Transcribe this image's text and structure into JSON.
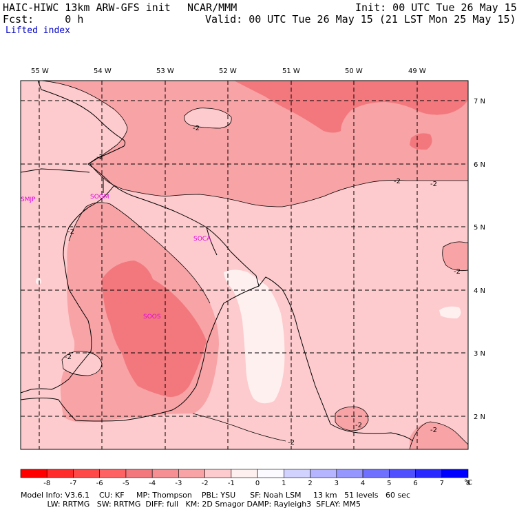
{
  "header": {
    "model_title": "HAIC-HIWC 13km ARW-GFS init",
    "org": "NCAR/MMM",
    "init": "Init: 00 UTC Tue 26 May 15",
    "fcst": "Fcst:     0 h",
    "valid": "Valid: 00 UTC Tue 26 May 15 (21 LST Mon 25 May 15)",
    "field": "Lifted index"
  },
  "map": {
    "lon_labels": [
      "55 W",
      "54 W",
      "53 W",
      "52 W",
      "51 W",
      "50 W",
      "49 W"
    ],
    "lat_labels": [
      "7 N",
      "6 N",
      "5 N",
      "4 N",
      "3 N",
      "2 N"
    ],
    "stations": [
      "SMJP",
      "SOGM",
      "SOCA",
      "SOOS"
    ],
    "contour_label": "-2",
    "colors": {
      "lev_m4": "#f2787d",
      "lev_m3": "#f8a3a6",
      "lev_m2": "#fdcbcd",
      "lev_m1": "#fff0f0",
      "coast": "#000000",
      "grid": "#000000",
      "station": "#e000e0"
    }
  },
  "colorbar": {
    "labels": [
      "-8",
      "-7",
      "-6",
      "-5",
      "-4",
      "-3",
      "-2",
      "-1",
      "0",
      "1",
      "2",
      "3",
      "4",
      "5",
      "6",
      "7",
      "8"
    ],
    "unit": "°C",
    "colors": [
      "#ff0000",
      "#ff2a2a",
      "#ff4848",
      "#ff6262",
      "#f2787d",
      "#f58f93",
      "#f8a3a6",
      "#fdcbcd",
      "#fff0f0",
      "#fafaff",
      "#d2d2ff",
      "#b4b4ff",
      "#9696ff",
      "#7070ff",
      "#5050ff",
      "#2828ff",
      "#0000ff"
    ]
  },
  "footer": {
    "line1": "Model Info: V3.6.1    CU: KF     MP: Thompson    PBL: YSU      SF: Noah LSM     13 km   51 levels   60 sec",
    "line2": "           LW: RRTMG   SW: RRTMG  DIFF: full   KM: 2D Smagor DAMP: Rayleigh3  SFLAY: MM5"
  }
}
